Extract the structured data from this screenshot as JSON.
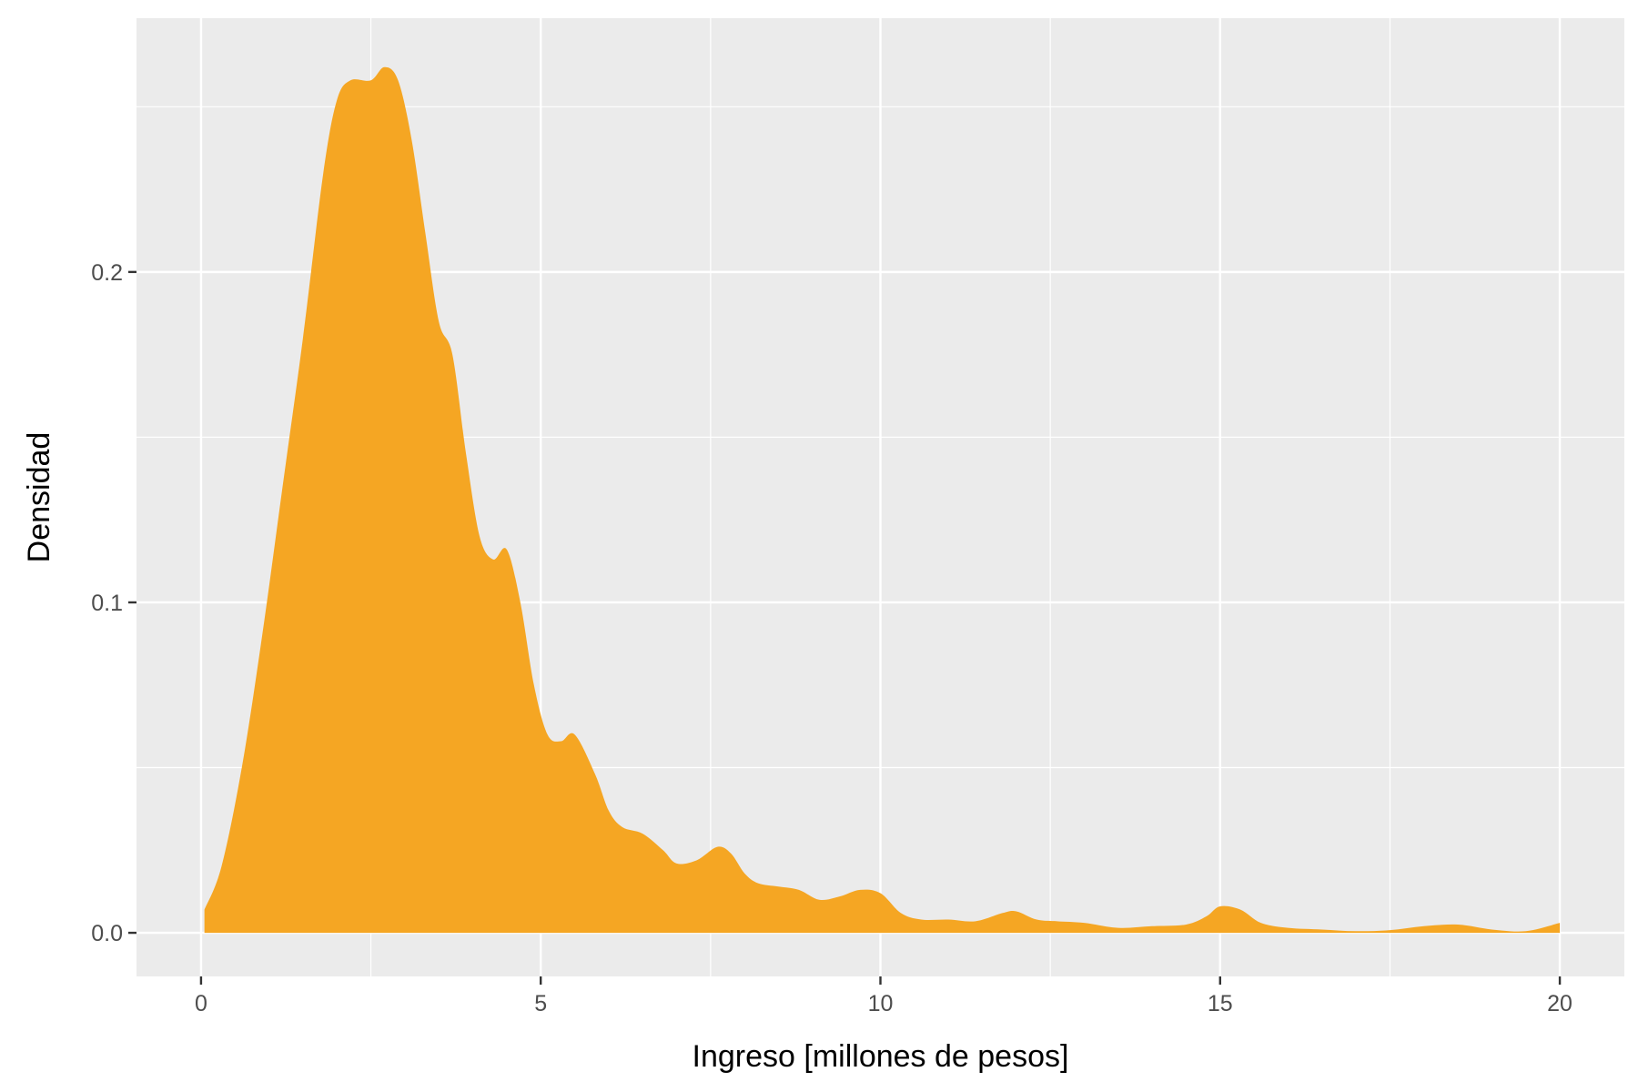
{
  "chart_data": {
    "type": "area",
    "title": "",
    "xlabel": "Ingreso [millones de pesos]",
    "ylabel": "Densidad",
    "xlim": [
      -0.95,
      20.95
    ],
    "ylim": [
      -0.0132,
      0.2768
    ],
    "x_ticks": [
      0,
      5,
      10,
      15,
      20
    ],
    "x_tick_labels": [
      "0",
      "5",
      "10",
      "15",
      "20"
    ],
    "y_ticks": [
      0.0,
      0.1,
      0.2
    ],
    "y_tick_labels": [
      "0.0",
      "0.1",
      "0.2"
    ],
    "grid": true,
    "legend": "none",
    "fill_color": "#F5A623",
    "panel_color": "#EBEBEB",
    "grid_color": "#FFFFFF",
    "x": [
      0.05,
      0.3,
      0.6,
      0.9,
      1.2,
      1.5,
      1.8,
      2.0,
      2.2,
      2.5,
      2.7,
      2.9,
      3.1,
      3.3,
      3.5,
      3.7,
      3.9,
      4.1,
      4.3,
      4.5,
      4.7,
      4.9,
      5.1,
      5.3,
      5.5,
      5.8,
      6.0,
      6.2,
      6.5,
      6.8,
      7.0,
      7.3,
      7.6,
      7.8,
      8.0,
      8.2,
      8.5,
      8.8,
      9.1,
      9.4,
      9.7,
      10.0,
      10.3,
      10.6,
      11.0,
      11.4,
      11.8,
      12.0,
      12.3,
      12.6,
      13.0,
      13.5,
      14.0,
      14.5,
      14.8,
      15.0,
      15.3,
      15.6,
      16.0,
      16.5,
      17.0,
      17.5,
      18.0,
      18.5,
      19.0,
      19.5,
      20.0
    ],
    "y": [
      0.007,
      0.02,
      0.05,
      0.09,
      0.135,
      0.18,
      0.23,
      0.252,
      0.258,
      0.258,
      0.262,
      0.258,
      0.24,
      0.212,
      0.185,
      0.175,
      0.145,
      0.12,
      0.113,
      0.116,
      0.1,
      0.075,
      0.06,
      0.058,
      0.06,
      0.048,
      0.037,
      0.032,
      0.03,
      0.025,
      0.021,
      0.022,
      0.026,
      0.024,
      0.018,
      0.015,
      0.014,
      0.013,
      0.01,
      0.011,
      0.013,
      0.012,
      0.006,
      0.004,
      0.004,
      0.0035,
      0.006,
      0.0065,
      0.004,
      0.0035,
      0.003,
      0.0015,
      0.002,
      0.0025,
      0.005,
      0.008,
      0.007,
      0.003,
      0.0015,
      0.001,
      0.0005,
      0.0008,
      0.002,
      0.0025,
      0.001,
      0.0005,
      0.003
    ]
  }
}
